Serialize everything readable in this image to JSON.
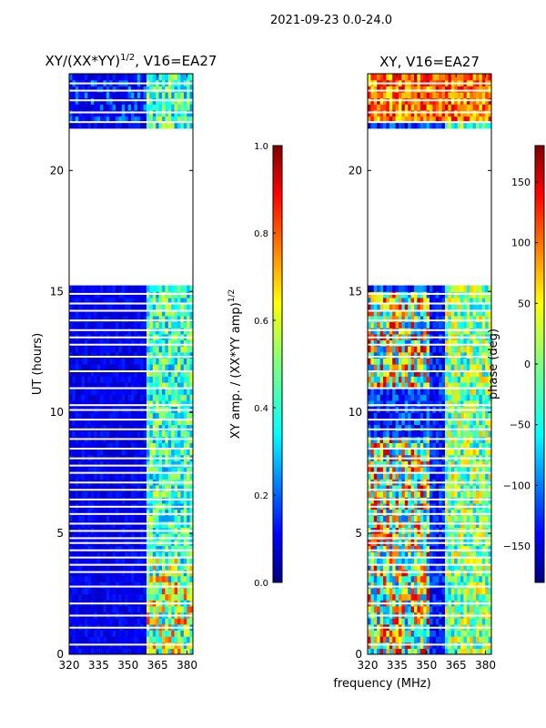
{
  "suptitle": "2021-09-23 0.0-24.0",
  "chart_data": [
    {
      "type": "heatmap",
      "title_main": "XY/(XX*YY)",
      "title_exp": "1/2",
      "title_tail": ", V16=EA27",
      "ylabel": "UT (hours)",
      "xlim": [
        320,
        383
      ],
      "ylim": [
        0,
        24
      ],
      "xticks": [
        320,
        335,
        350,
        365,
        380
      ],
      "xtick_labels": [
        "320",
        "335",
        "350",
        "365",
        "380"
      ],
      "yticks": [
        0,
        5,
        10,
        15,
        20
      ],
      "ytick_labels": [
        "0",
        "5",
        "10",
        "15",
        "20"
      ],
      "data_gap_hours": [
        15.2,
        21.7
      ],
      "mode": "amplitude"
    },
    {
      "type": "heatmap",
      "title": "XY, V16=EA27",
      "xlabel": "frequency (MHz)",
      "xlim": [
        320,
        383
      ],
      "ylim": [
        0,
        24
      ],
      "xticks": [
        320,
        335,
        350,
        365,
        380
      ],
      "xtick_labels": [
        "320",
        "335",
        "350",
        "365",
        "380"
      ],
      "yticks": [
        0,
        5,
        10,
        15,
        20
      ],
      "ytick_labels": [
        "0",
        "5",
        "10",
        "15",
        "20"
      ],
      "data_gap_hours": [
        15.2,
        21.7
      ],
      "mode": "phase"
    }
  ],
  "colorbars": [
    {
      "label_main": "XY amp. / (XX*YY amp)",
      "label_exp": "1/2",
      "range": [
        0.0,
        1.0
      ],
      "ticks": [
        0.0,
        0.2,
        0.4,
        0.6,
        0.8,
        1.0
      ],
      "tick_labels": [
        "0.0",
        "0.2",
        "0.4",
        "0.6",
        "0.8",
        "1.0"
      ]
    },
    {
      "label": "phase (deg)",
      "range": [
        -180,
        180
      ],
      "ticks": [
        -150,
        -100,
        -50,
        0,
        50,
        100,
        150
      ],
      "tick_labels": [
        "−150",
        "−100",
        "−50",
        "0",
        "50",
        "100",
        "150"
      ]
    }
  ],
  "colors": {
    "jet": [
      "#00007f",
      "#0000ff",
      "#007fff",
      "#00ffff",
      "#7fff7f",
      "#ffff00",
      "#ff7f00",
      "#ff0000",
      "#7f0000"
    ]
  }
}
